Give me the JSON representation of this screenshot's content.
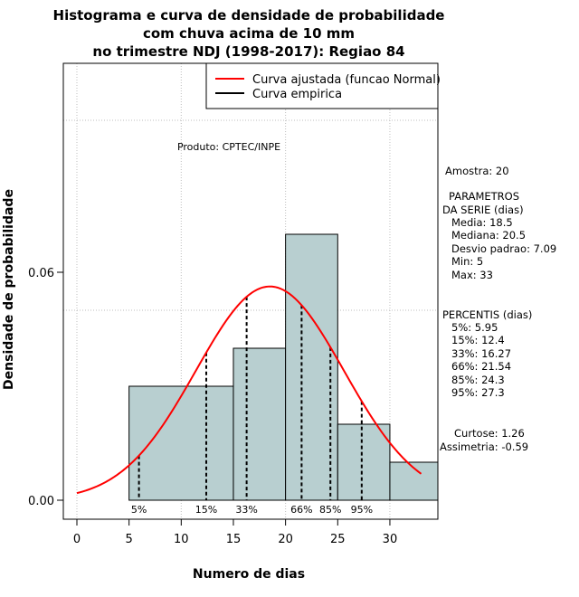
{
  "chart_data": {
    "type": "histogram",
    "title": [
      "Histograma e curva de densidade de probabilidade",
      "com chuva acima de 10 mm",
      "no trimestre NDJ (1998-2017): Regiao 84"
    ],
    "xlabel": "Numero de dias",
    "ylabel": "Densidade de probabilidade",
    "xlim": [
      -1.3,
      34.6
    ],
    "ylim": [
      -0.005,
      0.115
    ],
    "x_ticks": [
      0,
      5,
      10,
      15,
      20,
      25,
      30
    ],
    "y_ticks": [
      0.0,
      0.06
    ],
    "y_tick_labels": [
      "0.00",
      "0.06"
    ],
    "grid_x": [
      0,
      10,
      20,
      30
    ],
    "grid_y": [
      0.05,
      0.1
    ],
    "bins": [
      {
        "from": 5,
        "to": 15,
        "density": 0.03
      },
      {
        "from": 15,
        "to": 20,
        "density": 0.04
      },
      {
        "from": 20,
        "to": 25,
        "density": 0.07
      },
      {
        "from": 25,
        "to": 30,
        "density": 0.02
      },
      {
        "from": 30,
        "to": 35,
        "density": 0.01
      }
    ],
    "curve": {
      "mean": 18.5,
      "sd": 7.09,
      "x_from": 0,
      "x_to": 33
    },
    "percentile_lines": [
      {
        "label": "5%",
        "x": 5.95
      },
      {
        "label": "15%",
        "x": 12.4
      },
      {
        "label": "33%",
        "x": 16.27
      },
      {
        "label": "66%",
        "x": 21.54
      },
      {
        "label": "85%",
        "x": 24.3
      },
      {
        "label": "95%",
        "x": 27.3
      }
    ],
    "legend": {
      "position": "top-right",
      "items": [
        {
          "label": "Curva ajustada (funcao Normal)",
          "color": "#ff0000"
        },
        {
          "label": "Curva empirica",
          "color": "#000000"
        }
      ]
    },
    "annotation": "Produto: CPTEC/INPE",
    "colors": {
      "bar_fill": "#b8cfd0",
      "curve": "#ff0000",
      "percentile": "#000000",
      "grid": "#bebebe"
    }
  },
  "side_panel": {
    "lines": [
      {
        "text": "Amostra: 20"
      },
      {
        "text": "PARAMETROS"
      },
      {
        "text": "DA SERIE (dias)"
      },
      {
        "text": "Media: 18.5"
      },
      {
        "text": "Mediana: 20.5"
      },
      {
        "text": "Desvio padrao: 7.09"
      },
      {
        "text": "Min: 5"
      },
      {
        "text": "Max: 33"
      },
      {
        "text": "PERCENTIS (dias)"
      },
      {
        "text": "5%: 5.95"
      },
      {
        "text": "15%: 12.4"
      },
      {
        "text": "33%: 16.27"
      },
      {
        "text": "66%: 21.54"
      },
      {
        "text": "85%: 24.3"
      },
      {
        "text": "95%: 27.3"
      },
      {
        "text": "Curtose: 1.26"
      },
      {
        "text": "Assimetria: -0.59"
      }
    ]
  }
}
